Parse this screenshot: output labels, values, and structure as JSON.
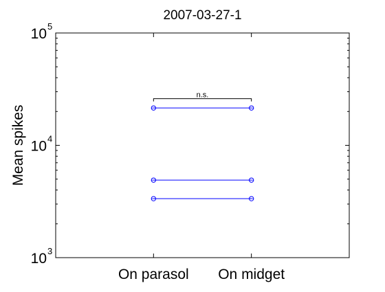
{
  "chart_data": {
    "type": "line",
    "title": "2007-03-27-1",
    "xlabel": "",
    "ylabel": "Mean spikes",
    "categories": [
      "On parasol",
      "On midget"
    ],
    "yscale": "log",
    "ylim": [
      1000,
      100000
    ],
    "yticks": [
      {
        "base": "10",
        "exp": "3",
        "value": 1000
      },
      {
        "base": "10",
        "exp": "4",
        "value": 10000
      },
      {
        "base": "10",
        "exp": "5",
        "value": 100000
      }
    ],
    "series": [
      {
        "values": [
          21500,
          21500
        ]
      },
      {
        "values": [
          4900,
          4900
        ]
      },
      {
        "values": [
          3350,
          3350
        ]
      }
    ],
    "marker": "circle",
    "line_color": "#0000ff",
    "grid": false,
    "annotation": {
      "text": "n.s.",
      "between": [
        "On parasol",
        "On midget"
      ],
      "y": 26000
    }
  }
}
